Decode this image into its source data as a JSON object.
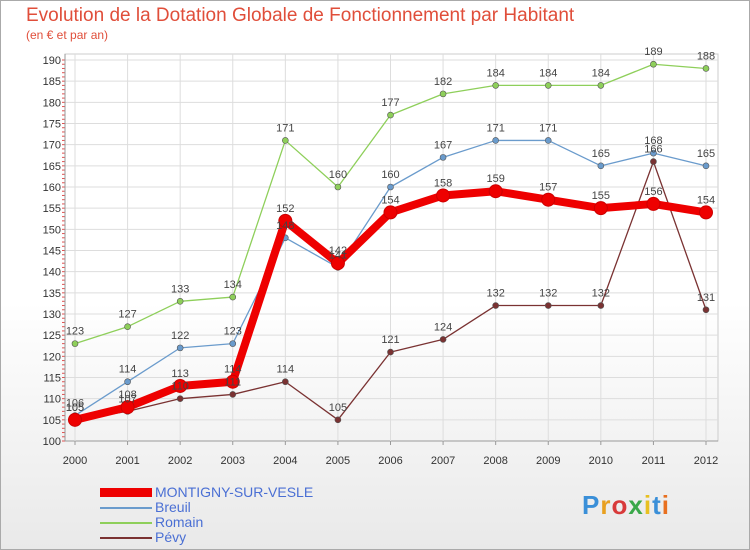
{
  "header": {
    "title": "Evolution de la Dotation Globale de Fonctionnement par Habitant",
    "subtitle": "(en € et par an)"
  },
  "chart_data": {
    "type": "line",
    "title": "Evolution de la Dotation Globale de Fonctionnement par Habitant",
    "subtitle": "(en € et par an)",
    "x": [
      2000,
      2001,
      2002,
      2003,
      2004,
      2005,
      2006,
      2007,
      2008,
      2009,
      2010,
      2011,
      2012
    ],
    "ylim": [
      100,
      190
    ],
    "ytick_step": 5,
    "grid": true,
    "series": [
      {
        "name": "MONTIGNY-SUR-VESLE",
        "color": "#ee0000",
        "values": [
          105,
          108,
          113,
          114,
          152,
          142,
          154,
          158,
          159,
          157,
          155,
          156,
          154
        ]
      },
      {
        "name": "Breuil",
        "color": "#6a9bcc",
        "values": [
          106,
          114,
          122,
          123,
          148,
          141,
          160,
          167,
          171,
          171,
          165,
          168,
          165
        ]
      },
      {
        "name": "Romain",
        "color": "#8ecf5a",
        "values": [
          123,
          127,
          133,
          134,
          171,
          160,
          177,
          182,
          184,
          184,
          184,
          189,
          188
        ]
      },
      {
        "name": "Pévy",
        "color": "#7a3232",
        "values": [
          105,
          107,
          110,
          111,
          114,
          105,
          121,
          124,
          132,
          132,
          132,
          166,
          131
        ]
      }
    ]
  },
  "branding": {
    "logo": "Proxiti"
  }
}
